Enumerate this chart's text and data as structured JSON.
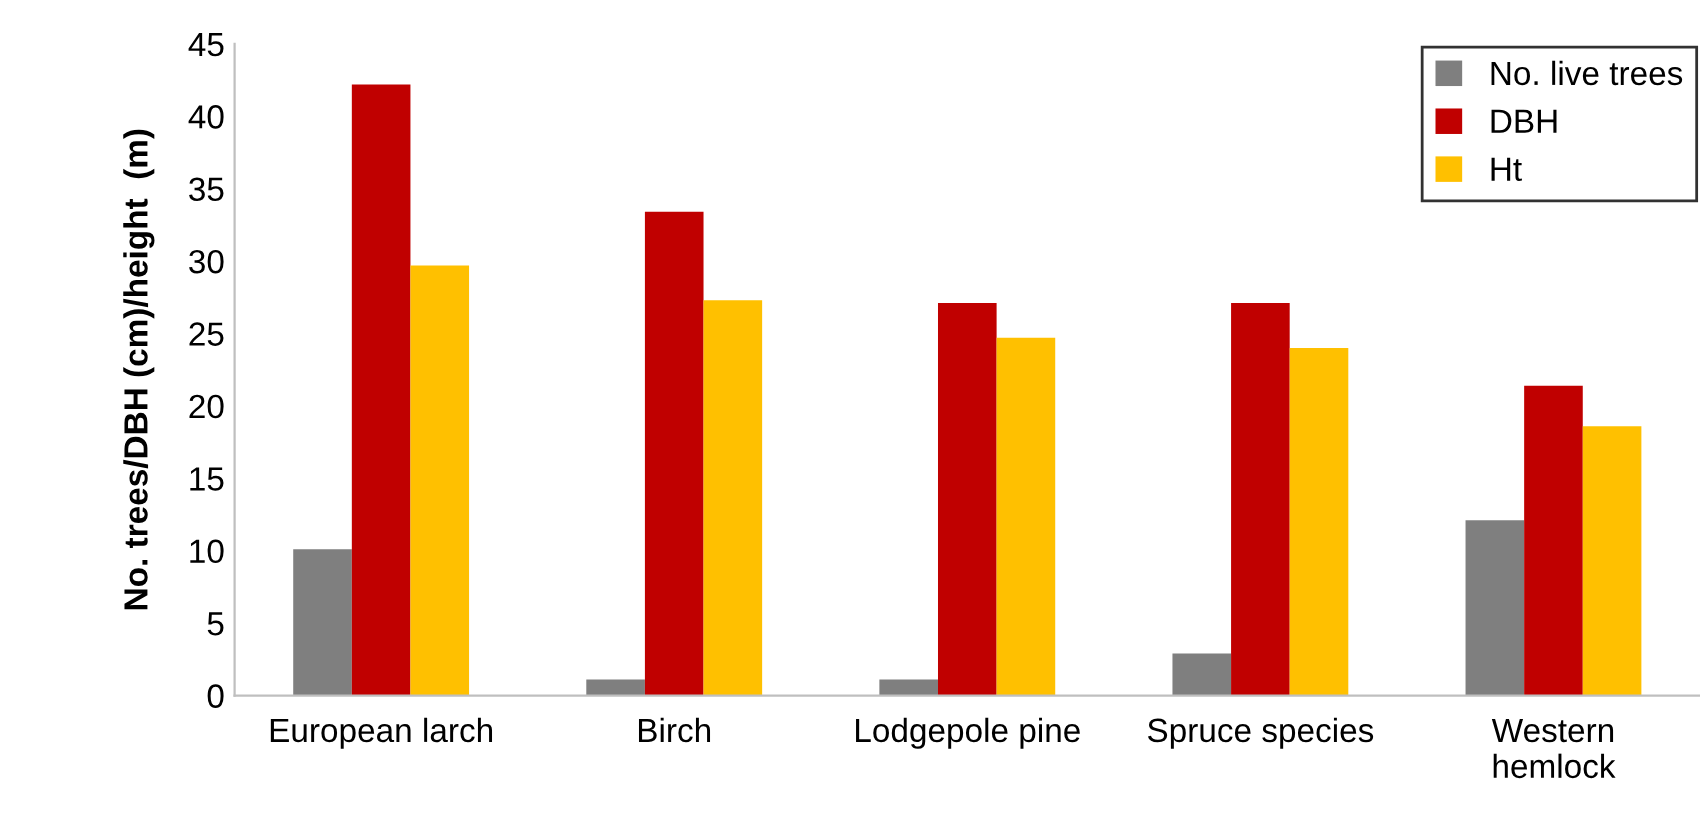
{
  "chart_data": {
    "type": "bar",
    "ylabel": "No. trees/DBH (cm)/height  (m)",
    "categories": [
      "European larch",
      "Birch",
      "Lodgepole pine",
      "Spruce species",
      "Western\nhemlock"
    ],
    "series": [
      {
        "name": "No. live trees",
        "color": "#7f7f7f",
        "values": [
          10.1,
          1.1,
          1.1,
          2.9,
          12.1
        ]
      },
      {
        "name": "DBH",
        "color": "#c00000",
        "values": [
          42.2,
          33.4,
          27.1,
          27.1,
          21.4
        ]
      },
      {
        "name": "Ht",
        "color": "#ffc000",
        "values": [
          29.7,
          27.3,
          24.7,
          24.0,
          18.6
        ]
      }
    ],
    "ylim": [
      0,
      45
    ],
    "yticks": [
      0,
      5,
      10,
      15,
      20,
      25,
      30,
      35,
      40,
      45
    ],
    "grid": false,
    "legend": "top right"
  }
}
